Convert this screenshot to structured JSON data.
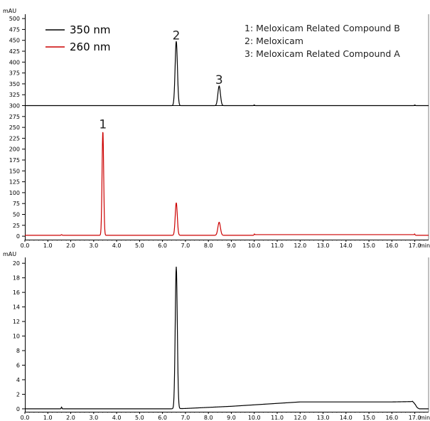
{
  "chart_data": [
    {
      "type": "line",
      "panel": "top",
      "ylabel": "mAU",
      "xlabel": "min",
      "xlim": [
        0,
        17.6
      ],
      "x_ticks": [
        0.0,
        1.0,
        2.0,
        3.0,
        4.0,
        5.0,
        6.0,
        7.0,
        8.0,
        9.0,
        10.0,
        11.0,
        12.0,
        13.0,
        14.0,
        15.0,
        16.0,
        17.0
      ],
      "x_tick_labels": [
        "0.0",
        "1.0",
        "2.0",
        "3.0",
        "4.0",
        "5.0",
        "6.0",
        "7.0",
        "8.0",
        "9.0",
        "10.0",
        "11.0",
        "12.0",
        "13.0",
        "14.0",
        "15.0",
        "16.0",
        "17.0"
      ],
      "ylim": [
        -8,
        510
      ],
      "y_ticks": [
        0,
        25,
        50,
        75,
        100,
        125,
        150,
        175,
        200,
        225,
        250,
        275,
        300,
        325,
        350,
        375,
        400,
        425,
        450,
        475,
        500
      ],
      "y_tick_labels": [
        "0",
        "25",
        "50",
        "75",
        "100",
        "125",
        "150",
        "175",
        "200",
        "225",
        "250",
        "275",
        "300",
        "325",
        "350",
        "375",
        "400",
        "425",
        "450",
        "475",
        "500"
      ],
      "separator_y": 300,
      "legend": {
        "placement": "top-left",
        "entries": [
          {
            "label": "350 nm",
            "color": "#000000"
          },
          {
            "label": "260 nm",
            "color": "#cc0000"
          }
        ]
      },
      "annotations": [
        "1: Meloxicam Related Compound B",
        "2: Meloxicam",
        "3: Meloxicam Related Compound A"
      ],
      "peak_labels": [
        {
          "text": "1",
          "x": 3.4,
          "y": 248
        },
        {
          "text": "2",
          "x": 6.6,
          "y": 452
        },
        {
          "text": "3",
          "x": 8.47,
          "y": 350
        }
      ],
      "series": [
        {
          "name": "350 nm",
          "color": "#000000",
          "baseline": 300,
          "peaks": [
            {
              "x": 6.6,
              "height": 148,
              "sigma": 0.05
            },
            {
              "x": 8.47,
              "height": 45,
              "sigma": 0.055
            }
          ],
          "bumps": [
            {
              "x": 10.0,
              "height": 1.5
            },
            {
              "x": 17.0,
              "height": 1.5
            }
          ]
        },
        {
          "name": "260 nm",
          "color": "#cc0000",
          "baseline": 2,
          "peaks": [
            {
              "x": 3.4,
              "height": 240,
              "sigma": 0.035
            },
            {
              "x": 6.6,
              "height": 75,
              "sigma": 0.045
            },
            {
              "x": 8.47,
              "height": 30,
              "sigma": 0.055
            }
          ],
          "bumps": [
            {
              "x": 1.6,
              "height": 1.5
            },
            {
              "x": 10.0,
              "height": 1.5
            },
            {
              "x": 17.0,
              "height": 1.5
            }
          ],
          "drift": {
            "from": 10.0,
            "to": 17.0,
            "height": 1.5
          }
        }
      ]
    },
    {
      "type": "line",
      "panel": "bottom",
      "ylabel": "mAU",
      "xlabel": "min",
      "xlim": [
        0,
        17.6
      ],
      "x_ticks": [
        0.0,
        1.0,
        2.0,
        3.0,
        4.0,
        5.0,
        6.0,
        7.0,
        8.0,
        9.0,
        10.0,
        11.0,
        12.0,
        13.0,
        14.0,
        15.0,
        16.0,
        17.0
      ],
      "x_tick_labels": [
        "0.0",
        "1.0",
        "2.0",
        "3.0",
        "4.0",
        "5.0",
        "6.0",
        "7.0",
        "8.0",
        "9.0",
        "10.0",
        "11.0",
        "12.0",
        "13.0",
        "14.0",
        "15.0",
        "16.0",
        "17.0"
      ],
      "ylim": [
        -0.4,
        20.8
      ],
      "y_ticks": [
        0,
        2,
        4,
        6,
        8,
        10,
        12,
        14,
        16,
        18,
        20
      ],
      "y_tick_labels": [
        "0",
        "2",
        "4",
        "6",
        "8",
        "10",
        "12",
        "14",
        "16",
        "18",
        "20"
      ],
      "series": [
        {
          "name": "",
          "color": "#000000",
          "baseline_points": [
            [
              0,
              0
            ],
            [
              6.3,
              0
            ],
            [
              7.0,
              0.05
            ],
            [
              8.0,
              0.2
            ],
            [
              9.0,
              0.35
            ],
            [
              10.0,
              0.55
            ],
            [
              11.0,
              0.75
            ],
            [
              12.0,
              0.95
            ],
            [
              13.0,
              0.95
            ],
            [
              14.0,
              0.95
            ],
            [
              15.0,
              0.95
            ],
            [
              16.0,
              0.95
            ],
            [
              16.9,
              1.0
            ],
            [
              17.0,
              0.3
            ],
            [
              17.2,
              0.0
            ],
            [
              17.6,
              0.0
            ]
          ],
          "peaks": [
            {
              "x": 6.6,
              "height": 19.5,
              "sigma": 0.045
            },
            {
              "x": 17.0,
              "height": 0.35,
              "sigma": 0.05
            },
            {
              "x": 1.6,
              "height": 0.25,
              "sigma": 0.015
            }
          ]
        }
      ]
    }
  ]
}
